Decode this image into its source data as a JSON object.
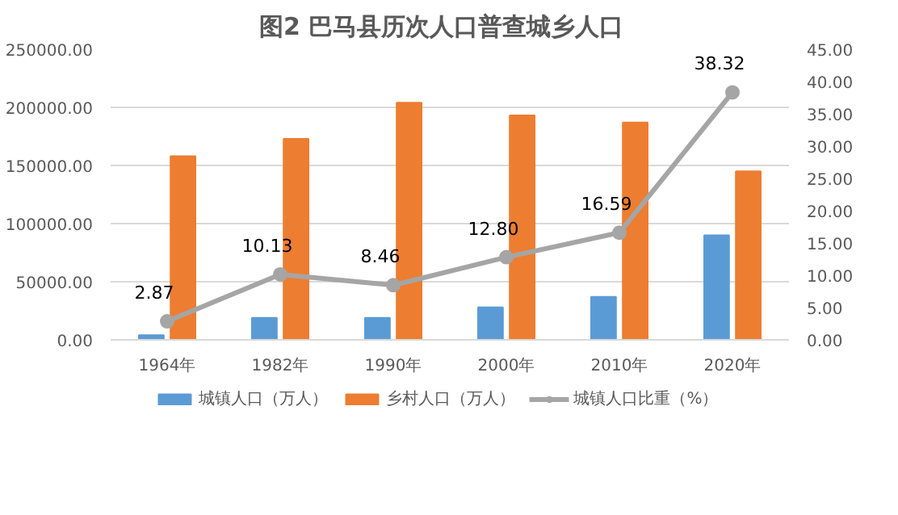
{
  "chart_data": {
    "type": "bar",
    "title": "图2   巴马县历次人口普查城乡人口",
    "categories": [
      "1964年",
      "1982年",
      "1990年",
      "2000年",
      "2010年",
      "2020年"
    ],
    "series": [
      {
        "name": "城镇人口（万人）",
        "color": "#5b9bd5",
        "values": [
          4000,
          19000,
          19000,
          28000,
          37000,
          90000
        ]
      },
      {
        "name": "乡村人口（万人）",
        "color": "#ed7d31",
        "values": [
          158000,
          173000,
          204000,
          193000,
          187000,
          145000
        ]
      },
      {
        "name": "城镇人口比重（%）",
        "type": "line",
        "axis": "y2",
        "color": "#a5a5a5",
        "marker": "circle",
        "data_labels": true,
        "values": [
          2.87,
          10.13,
          8.46,
          12.8,
          16.59,
          38.32
        ],
        "value_labels": [
          "2.87",
          "10.13",
          "8.46",
          "12.80",
          "16.59",
          "38.32"
        ]
      }
    ],
    "ylim": [
      0,
      250000
    ],
    "yticks": [
      {
        "value": 0,
        "label": "0.00"
      },
      {
        "value": 50000,
        "label": "50000.00"
      },
      {
        "value": 100000,
        "label": "100000.00"
      },
      {
        "value": 150000,
        "label": "150000.00"
      },
      {
        "value": 200000,
        "label": "200000.00"
      },
      {
        "value": 250000,
        "label": "250000.00"
      }
    ],
    "y2lim": [
      0,
      45
    ],
    "y2ticks": [
      {
        "value": 0,
        "label": "0.00"
      },
      {
        "value": 5,
        "label": "5.00"
      },
      {
        "value": 10,
        "label": "10.00"
      },
      {
        "value": 15,
        "label": "15.00"
      },
      {
        "value": 20,
        "label": "20.00"
      },
      {
        "value": 25,
        "label": "25.00"
      },
      {
        "value": 30,
        "label": "30.00"
      },
      {
        "value": 35,
        "label": "35.00"
      },
      {
        "value": 40,
        "label": "40.00"
      },
      {
        "value": 45,
        "label": "45.00"
      }
    ],
    "grid": "y",
    "legend": "bottom"
  }
}
